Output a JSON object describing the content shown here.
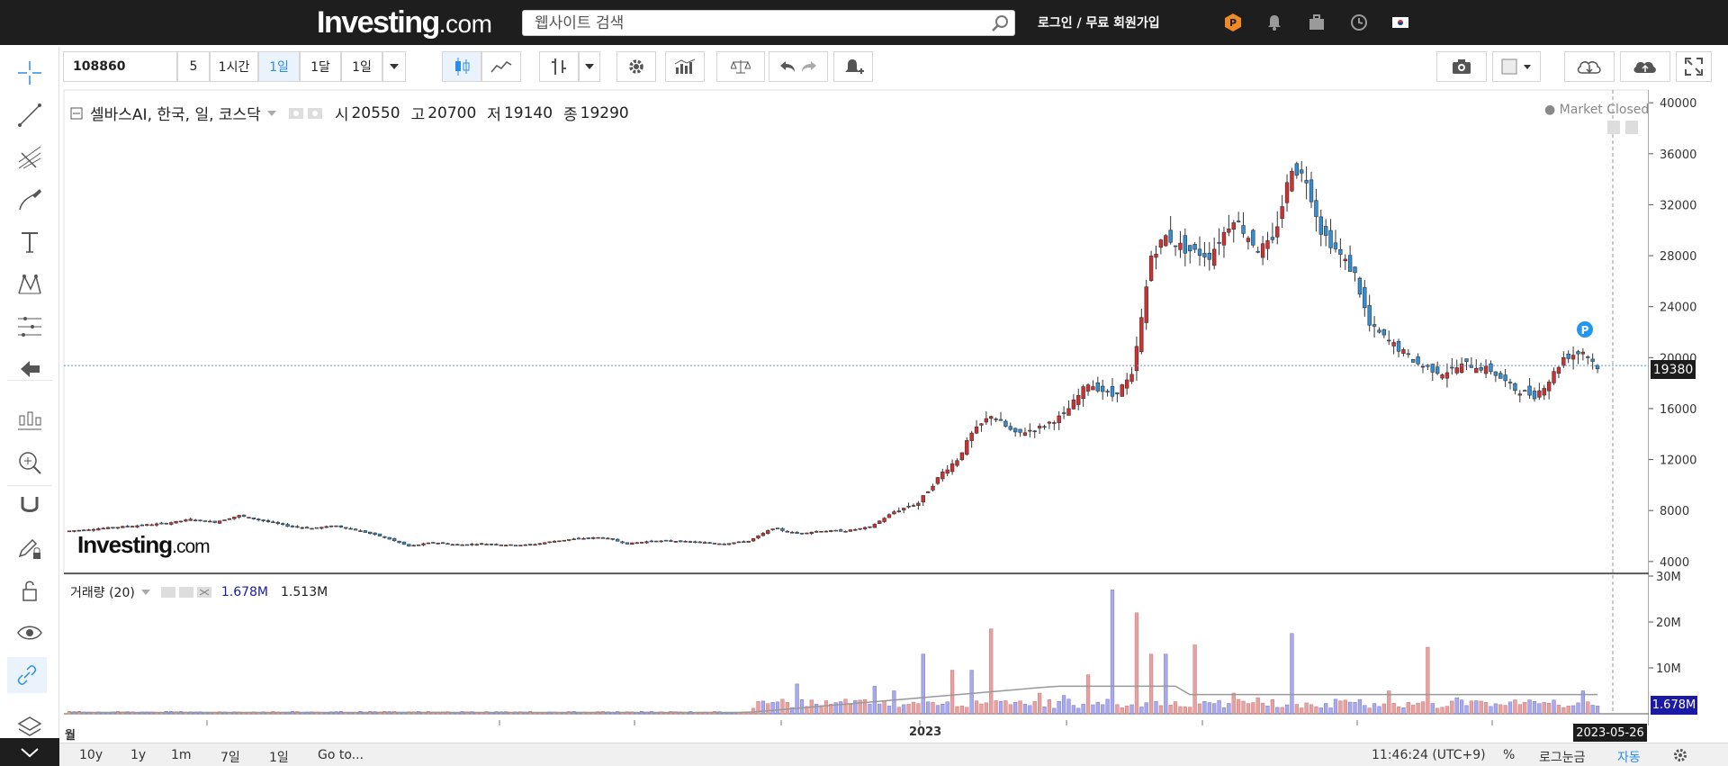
{
  "header": {
    "logo_main": "Investing",
    "logo_suffix": ".com",
    "search_placeholder": "웹사이트 검색",
    "login": "로그인 / 무료 회원가입"
  },
  "toolbar": {
    "symbol": "108860",
    "interval_num": "5",
    "b_1h": "1시간",
    "b_1d": "1일",
    "b_1m": "1달",
    "b_range": "1일"
  },
  "legend": {
    "title": "셀바스AI, 한국, 일, 코스닥",
    "open_label": "시",
    "open": "20550",
    "high_label": "고",
    "high": "20700",
    "low_label": "저",
    "low": "19140",
    "close_label": "종",
    "close": "19290",
    "market_status": "Market Closed"
  },
  "volume_legend": {
    "title": "거래량 (20)",
    "v1": "1.678M",
    "v2": "1.513M"
  },
  "current_price": "19380",
  "volume_current": "1.678M",
  "date_marker": "2023-05-26",
  "x_labels": {
    "left": "월",
    "mid": "2023"
  },
  "watermark": {
    "main": "Investing",
    "suffix": ".com"
  },
  "bottom": {
    "r10y": "10y",
    "r1y": "1y",
    "r1m": "1m",
    "r7d": "7일",
    "r1d": "1일",
    "goto": "Go to...",
    "time": "11:46:24 (UTC+9)",
    "pct": "%",
    "log": "로그눈금",
    "auto": "자동"
  },
  "chart_data": {
    "type": "candlestick",
    "y_axis_ticks": [
      4000,
      8000,
      12000,
      16000,
      20000,
      24000,
      28000,
      32000,
      36000,
      40000
    ],
    "volume_axis_ticks": [
      "10M",
      "20M",
      "30M"
    ],
    "ylim": [
      3000,
      41000
    ],
    "colors": {
      "up": "#d32f2f",
      "down": "#2f8fd8",
      "volume_up": "#e8a1a1",
      "volume_down": "#a9a9ee",
      "ma": "#999999"
    },
    "price_path": [
      [
        0,
        6400
      ],
      [
        10,
        6700
      ],
      [
        20,
        7000
      ],
      [
        25,
        7300
      ],
      [
        30,
        7100
      ],
      [
        35,
        7600
      ],
      [
        40,
        7200
      ],
      [
        45,
        6800
      ],
      [
        50,
        6600
      ],
      [
        55,
        6800
      ],
      [
        60,
        6400
      ],
      [
        65,
        5900
      ],
      [
        70,
        5200
      ],
      [
        75,
        5500
      ],
      [
        80,
        5300
      ],
      [
        85,
        5400
      ],
      [
        90,
        5300
      ],
      [
        95,
        5300
      ],
      [
        100,
        5600
      ],
      [
        105,
        5800
      ],
      [
        110,
        5900
      ],
      [
        115,
        5400
      ],
      [
        120,
        5600
      ],
      [
        125,
        5600
      ],
      [
        130,
        5500
      ],
      [
        135,
        5400
      ],
      [
        140,
        5600
      ],
      [
        145,
        6600
      ],
      [
        150,
        6200
      ],
      [
        155,
        6400
      ],
      [
        160,
        6400
      ],
      [
        165,
        6700
      ],
      [
        170,
        7900
      ],
      [
        175,
        8600
      ],
      [
        180,
        11000
      ],
      [
        183,
        12000
      ],
      [
        186,
        14000
      ],
      [
        190,
        15500
      ],
      [
        195,
        14000
      ],
      [
        200,
        14500
      ],
      [
        205,
        15500
      ],
      [
        210,
        18000
      ],
      [
        215,
        17000
      ],
      [
        219,
        18500
      ],
      [
        221,
        23000
      ],
      [
        223,
        28000
      ],
      [
        226,
        29500
      ],
      [
        230,
        28500
      ],
      [
        235,
        28000
      ],
      [
        240,
        31000
      ],
      [
        245,
        28500
      ],
      [
        248,
        29000
      ],
      [
        252,
        35000
      ],
      [
        255,
        34000
      ],
      [
        258,
        30000
      ],
      [
        262,
        28000
      ],
      [
        265,
        26500
      ],
      [
        268,
        22500
      ],
      [
        273,
        21000
      ],
      [
        278,
        19500
      ],
      [
        283,
        18800
      ],
      [
        288,
        19500
      ],
      [
        293,
        19000
      ],
      [
        298,
        17500
      ],
      [
        302,
        17000
      ],
      [
        305,
        18200
      ],
      [
        308,
        20000
      ],
      [
        312,
        20500
      ],
      [
        315,
        19290
      ]
    ],
    "volume_bars_million": [
      [
        145,
        2.5
      ],
      [
        150,
        6.5
      ],
      [
        155,
        1.8
      ],
      [
        160,
        3.2
      ],
      [
        166,
        6.0
      ],
      [
        170,
        5.0
      ],
      [
        176,
        13.0
      ],
      [
        178,
        2.5
      ],
      [
        182,
        9.5
      ],
      [
        186,
        9.5
      ],
      [
        190,
        18.5
      ],
      [
        195,
        2.5
      ],
      [
        200,
        4.5
      ],
      [
        205,
        4.0
      ],
      [
        210,
        8.5
      ],
      [
        215,
        27.0
      ],
      [
        220,
        22.0
      ],
      [
        223,
        13.0
      ],
      [
        226,
        13.0
      ],
      [
        232,
        15.0
      ],
      [
        240,
        4.5
      ],
      [
        245,
        3.5
      ],
      [
        252,
        17.5
      ],
      [
        256,
        2.0
      ],
      [
        265,
        2.5
      ],
      [
        272,
        5.0
      ],
      [
        280,
        14.5
      ],
      [
        286,
        3.5
      ],
      [
        292,
        2.5
      ],
      [
        300,
        2.5
      ],
      [
        306,
        3.0
      ],
      [
        312,
        5.0
      ],
      [
        315,
        1.7
      ]
    ]
  }
}
